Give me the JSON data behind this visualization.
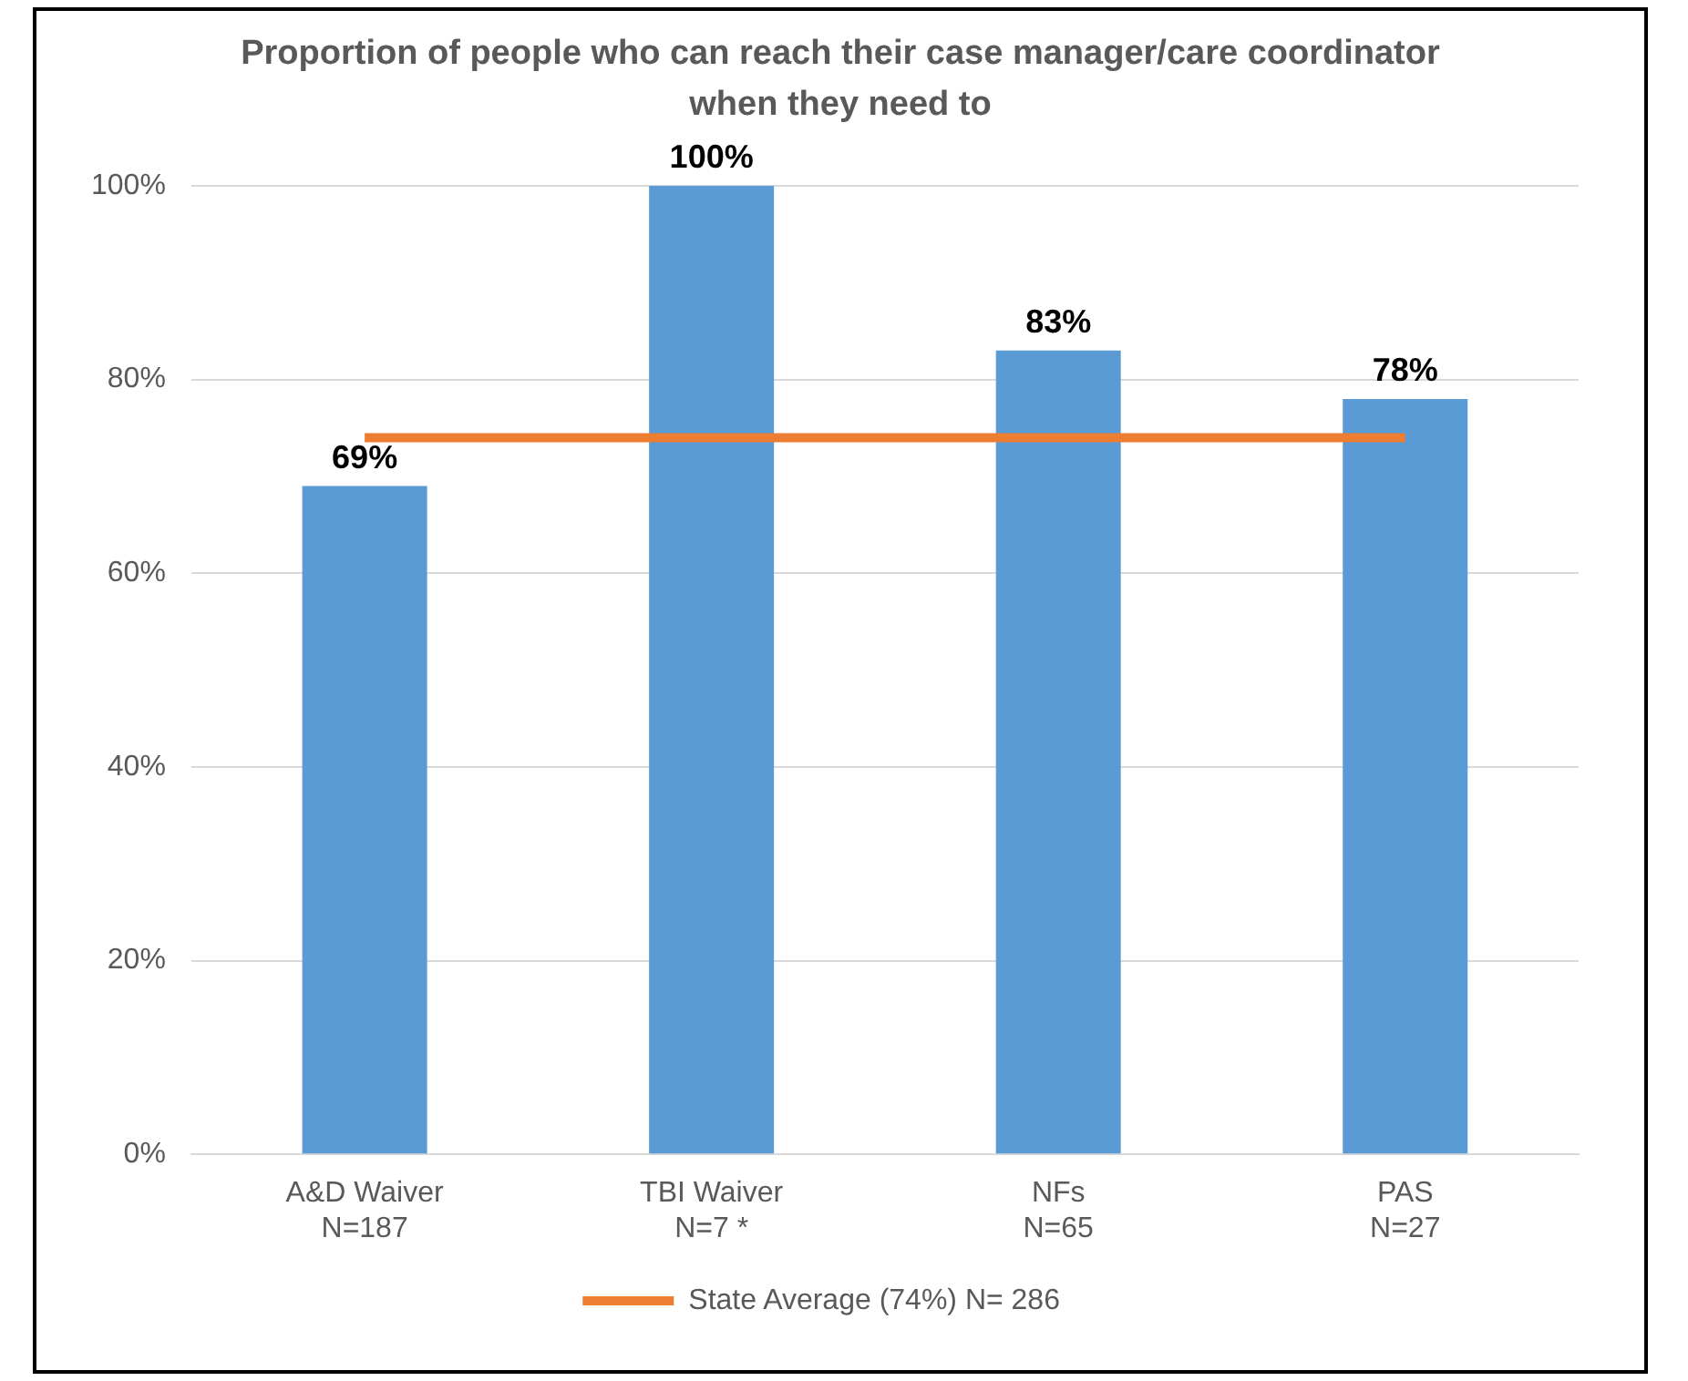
{
  "chart_data": {
    "type": "bar",
    "title": "Proportion of people who can reach their case manager/care coordinator when they need to",
    "categories": [
      "A&D Waiver\nN=187",
      "TBI Waiver\nN=7 *",
      "NFs\nN=65",
      "PAS\nN=27"
    ],
    "series": [
      {
        "color": "#5b9bd5",
        "values": [
          69,
          100,
          83,
          78
        ],
        "value_labels": [
          "69%",
          "100%",
          "83%",
          "78%"
        ]
      },
      {
        "type": "line",
        "name": "State Average (74%) N= 286",
        "color": "#ed7d31",
        "values": [
          74,
          74,
          74,
          74
        ]
      }
    ],
    "ylim": [
      0,
      100
    ],
    "yticks": [
      {
        "value": 0,
        "label": "0%"
      },
      {
        "value": 20,
        "label": "20%"
      },
      {
        "value": 40,
        "label": "40%"
      },
      {
        "value": 60,
        "label": "60%"
      },
      {
        "value": 80,
        "label": "80%"
      },
      {
        "value": 100,
        "label": "100%"
      }
    ],
    "grid": "y",
    "legend": "bottom"
  }
}
